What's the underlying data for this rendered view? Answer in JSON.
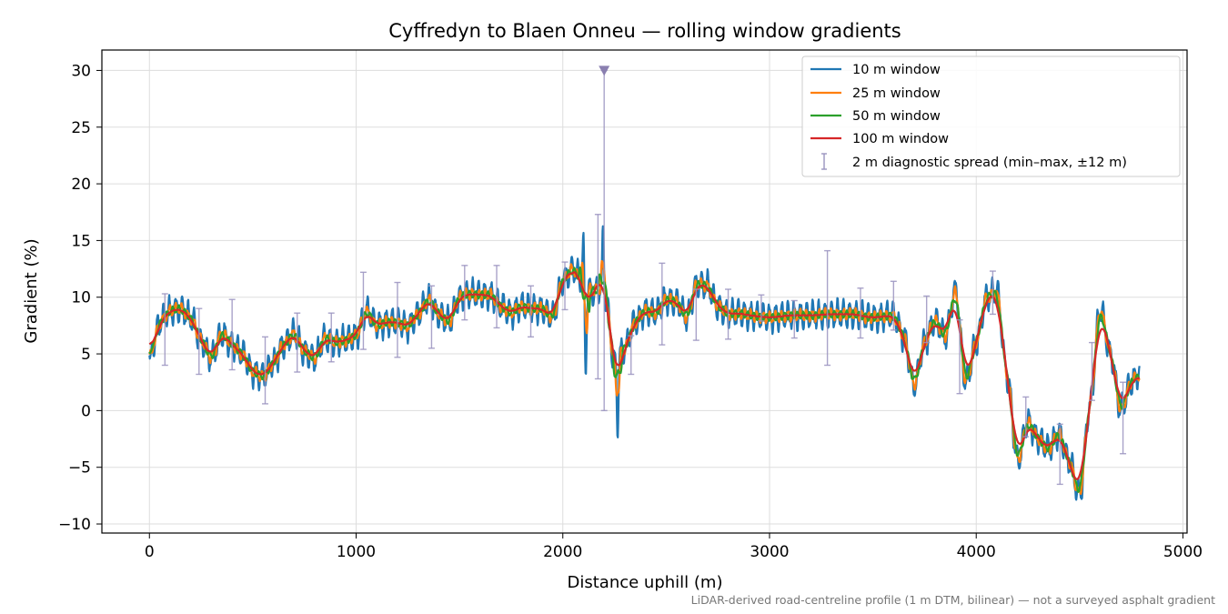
{
  "chart_data": {
    "type": "line",
    "title": "Cyffredyn to Blaen Onneu — rolling window gradients",
    "xlabel": "Distance uphill (m)",
    "ylabel": "Gradient (%)",
    "footnote": "LiDAR-derived road-centreline profile (1 m DTM, bilinear) — not a surveyed asphalt gradient",
    "xlim": [
      -230,
      5020
    ],
    "ylim": [
      -10.8,
      31.8
    ],
    "xticks": [
      0,
      1000,
      2000,
      3000,
      4000,
      5000
    ],
    "yticks": [
      -10,
      -5,
      0,
      5,
      10,
      15,
      20,
      25,
      30
    ],
    "grid": true,
    "legend_position": "top-right",
    "legend": [
      "10 m window",
      "25 m window",
      "50 m window",
      "100 m window",
      "2 m diagnostic spread (min–max, ±12 m)"
    ],
    "clip_marker": {
      "x": 2200,
      "y": 30,
      "color": "#8a7fb0"
    },
    "colors": {
      "w10": "#1f77b4",
      "w25": "#ff7f0e",
      "w50": "#2ca02c",
      "w100": "#d62728",
      "spread": "#9a93bf"
    },
    "base_profile": [
      [
        0,
        3.5
      ],
      [
        20,
        6.0
      ],
      [
        50,
        7.8
      ],
      [
        100,
        8.8
      ],
      [
        150,
        9.0
      ],
      [
        200,
        8.2
      ],
      [
        250,
        6.2
      ],
      [
        300,
        4.6
      ],
      [
        350,
        6.8
      ],
      [
        400,
        5.8
      ],
      [
        450,
        5.0
      ],
      [
        500,
        3.4
      ],
      [
        550,
        3.0
      ],
      [
        600,
        4.2
      ],
      [
        650,
        5.8
      ],
      [
        700,
        6.8
      ],
      [
        750,
        5.2
      ],
      [
        800,
        4.6
      ],
      [
        850,
        6.4
      ],
      [
        900,
        6.0
      ],
      [
        950,
        6.2
      ],
      [
        1000,
        6.6
      ],
      [
        1050,
        8.8
      ],
      [
        1100,
        7.5
      ],
      [
        1150,
        7.8
      ],
      [
        1200,
        7.8
      ],
      [
        1250,
        7.4
      ],
      [
        1300,
        8.5
      ],
      [
        1350,
        9.8
      ],
      [
        1400,
        8.5
      ],
      [
        1450,
        7.8
      ],
      [
        1500,
        10.0
      ],
      [
        1550,
        10.3
      ],
      [
        1600,
        10.2
      ],
      [
        1650,
        10.2
      ],
      [
        1700,
        9.2
      ],
      [
        1750,
        8.6
      ],
      [
        1800,
        9.2
      ],
      [
        1850,
        9.0
      ],
      [
        1900,
        9.0
      ],
      [
        1950,
        8.2
      ],
      [
        2000,
        11.5
      ],
      [
        2050,
        12.5
      ],
      [
        2100,
        11.0
      ],
      [
        2150,
        10.5
      ],
      [
        2200,
        11.0
      ],
      [
        2250,
        4.2
      ],
      [
        2300,
        5.5
      ],
      [
        2350,
        7.8
      ],
      [
        2400,
        8.8
      ],
      [
        2450,
        8.6
      ],
      [
        2500,
        9.8
      ],
      [
        2550,
        9.6
      ],
      [
        2600,
        8.2
      ],
      [
        2650,
        11.2
      ],
      [
        2700,
        11.0
      ],
      [
        2750,
        9.2
      ],
      [
        2800,
        8.5
      ],
      [
        2850,
        8.6
      ],
      [
        2900,
        8.4
      ],
      [
        2950,
        8.3
      ],
      [
        3000,
        8.2
      ],
      [
        3100,
        8.4
      ],
      [
        3200,
        8.4
      ],
      [
        3300,
        8.5
      ],
      [
        3400,
        8.5
      ],
      [
        3500,
        8.2
      ],
      [
        3600,
        8.4
      ],
      [
        3650,
        6.5
      ],
      [
        3700,
        2.2
      ],
      [
        3750,
        6.0
      ],
      [
        3800,
        8.0
      ],
      [
        3850,
        6.5
      ],
      [
        3900,
        10.6
      ],
      [
        3950,
        2.4
      ],
      [
        4000,
        6.0
      ],
      [
        4050,
        10.0
      ],
      [
        4100,
        10.5
      ],
      [
        4150,
        3.0
      ],
      [
        4200,
        -4.5
      ],
      [
        4250,
        -1.0
      ],
      [
        4300,
        -2.5
      ],
      [
        4350,
        -3.4
      ],
      [
        4400,
        -2.0
      ],
      [
        4450,
        -4.5
      ],
      [
        4500,
        -7.5
      ],
      [
        4550,
        0.5
      ],
      [
        4600,
        9.0
      ],
      [
        4650,
        5.0
      ],
      [
        4700,
        0.0
      ],
      [
        4750,
        2.5
      ],
      [
        4790,
        3.4
      ]
    ],
    "spike_features": [
      [
        2100,
        17.0,
        6
      ],
      [
        2110,
        -1.8,
        4
      ],
      [
        2195,
        20.5,
        3
      ],
      [
        2205,
        8.0,
        3
      ],
      [
        2265,
        -5.8,
        4
      ]
    ],
    "spread_bars": [
      [
        75,
        4.0,
        10.3
      ],
      [
        240,
        3.2,
        9.0
      ],
      [
        400,
        3.6,
        9.8
      ],
      [
        560,
        0.6,
        6.5
      ],
      [
        715,
        3.4,
        8.6
      ],
      [
        880,
        4.3,
        8.6
      ],
      [
        1035,
        5.4,
        12.2
      ],
      [
        1200,
        4.7,
        11.3
      ],
      [
        1365,
        5.5,
        11.0
      ],
      [
        1525,
        8.0,
        12.8
      ],
      [
        1680,
        7.3,
        12.8
      ],
      [
        1845,
        6.5,
        11.0
      ],
      [
        2010,
        8.9,
        13.1
      ],
      [
        2170,
        2.8,
        17.3
      ],
      [
        2200,
        0.0,
        30.0
      ],
      [
        2330,
        3.2,
        6.6
      ],
      [
        2480,
        5.8,
        13.0
      ],
      [
        2645,
        6.2,
        10.7
      ],
      [
        2800,
        6.3,
        10.7
      ],
      [
        2960,
        7.9,
        10.2
      ],
      [
        3120,
        6.4,
        9.7
      ],
      [
        3280,
        4.0,
        14.1
      ],
      [
        3440,
        6.4,
        10.8
      ],
      [
        3600,
        7.1,
        11.4
      ],
      [
        3760,
        6.0,
        10.1
      ],
      [
        3920,
        1.5,
        8.0
      ],
      [
        4080,
        8.5,
        12.3
      ],
      [
        4240,
        -2.3,
        1.2
      ],
      [
        4405,
        -6.5,
        -1.2
      ],
      [
        4560,
        0.9,
        6.0
      ],
      [
        4710,
        -3.8,
        2.5
      ]
    ]
  }
}
